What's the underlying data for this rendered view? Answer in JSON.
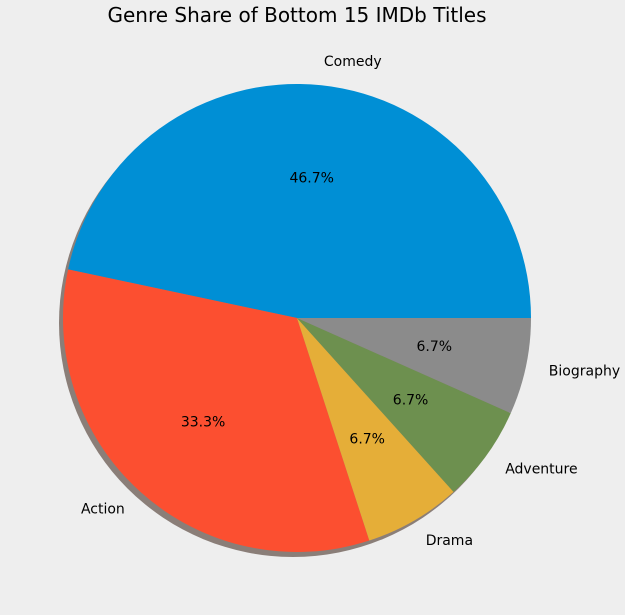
{
  "chart_data": {
    "type": "pie",
    "title": "Genre Share of Bottom 15 IMDb Titles",
    "categories": [
      "Comedy",
      "Action",
      "Drama",
      "Adventure",
      "Biography"
    ],
    "values": [
      7,
      5,
      1,
      1,
      1
    ],
    "percent_labels": [
      "46.7%",
      "33.3%",
      "6.7%",
      "6.7%",
      "6.7%"
    ],
    "colors": [
      "#008fd5",
      "#fc4f30",
      "#e5ae38",
      "#6d904f",
      "#8b8b8b"
    ],
    "shadow": true,
    "start_angle_deg": 0,
    "direction": "counterclockwise"
  }
}
